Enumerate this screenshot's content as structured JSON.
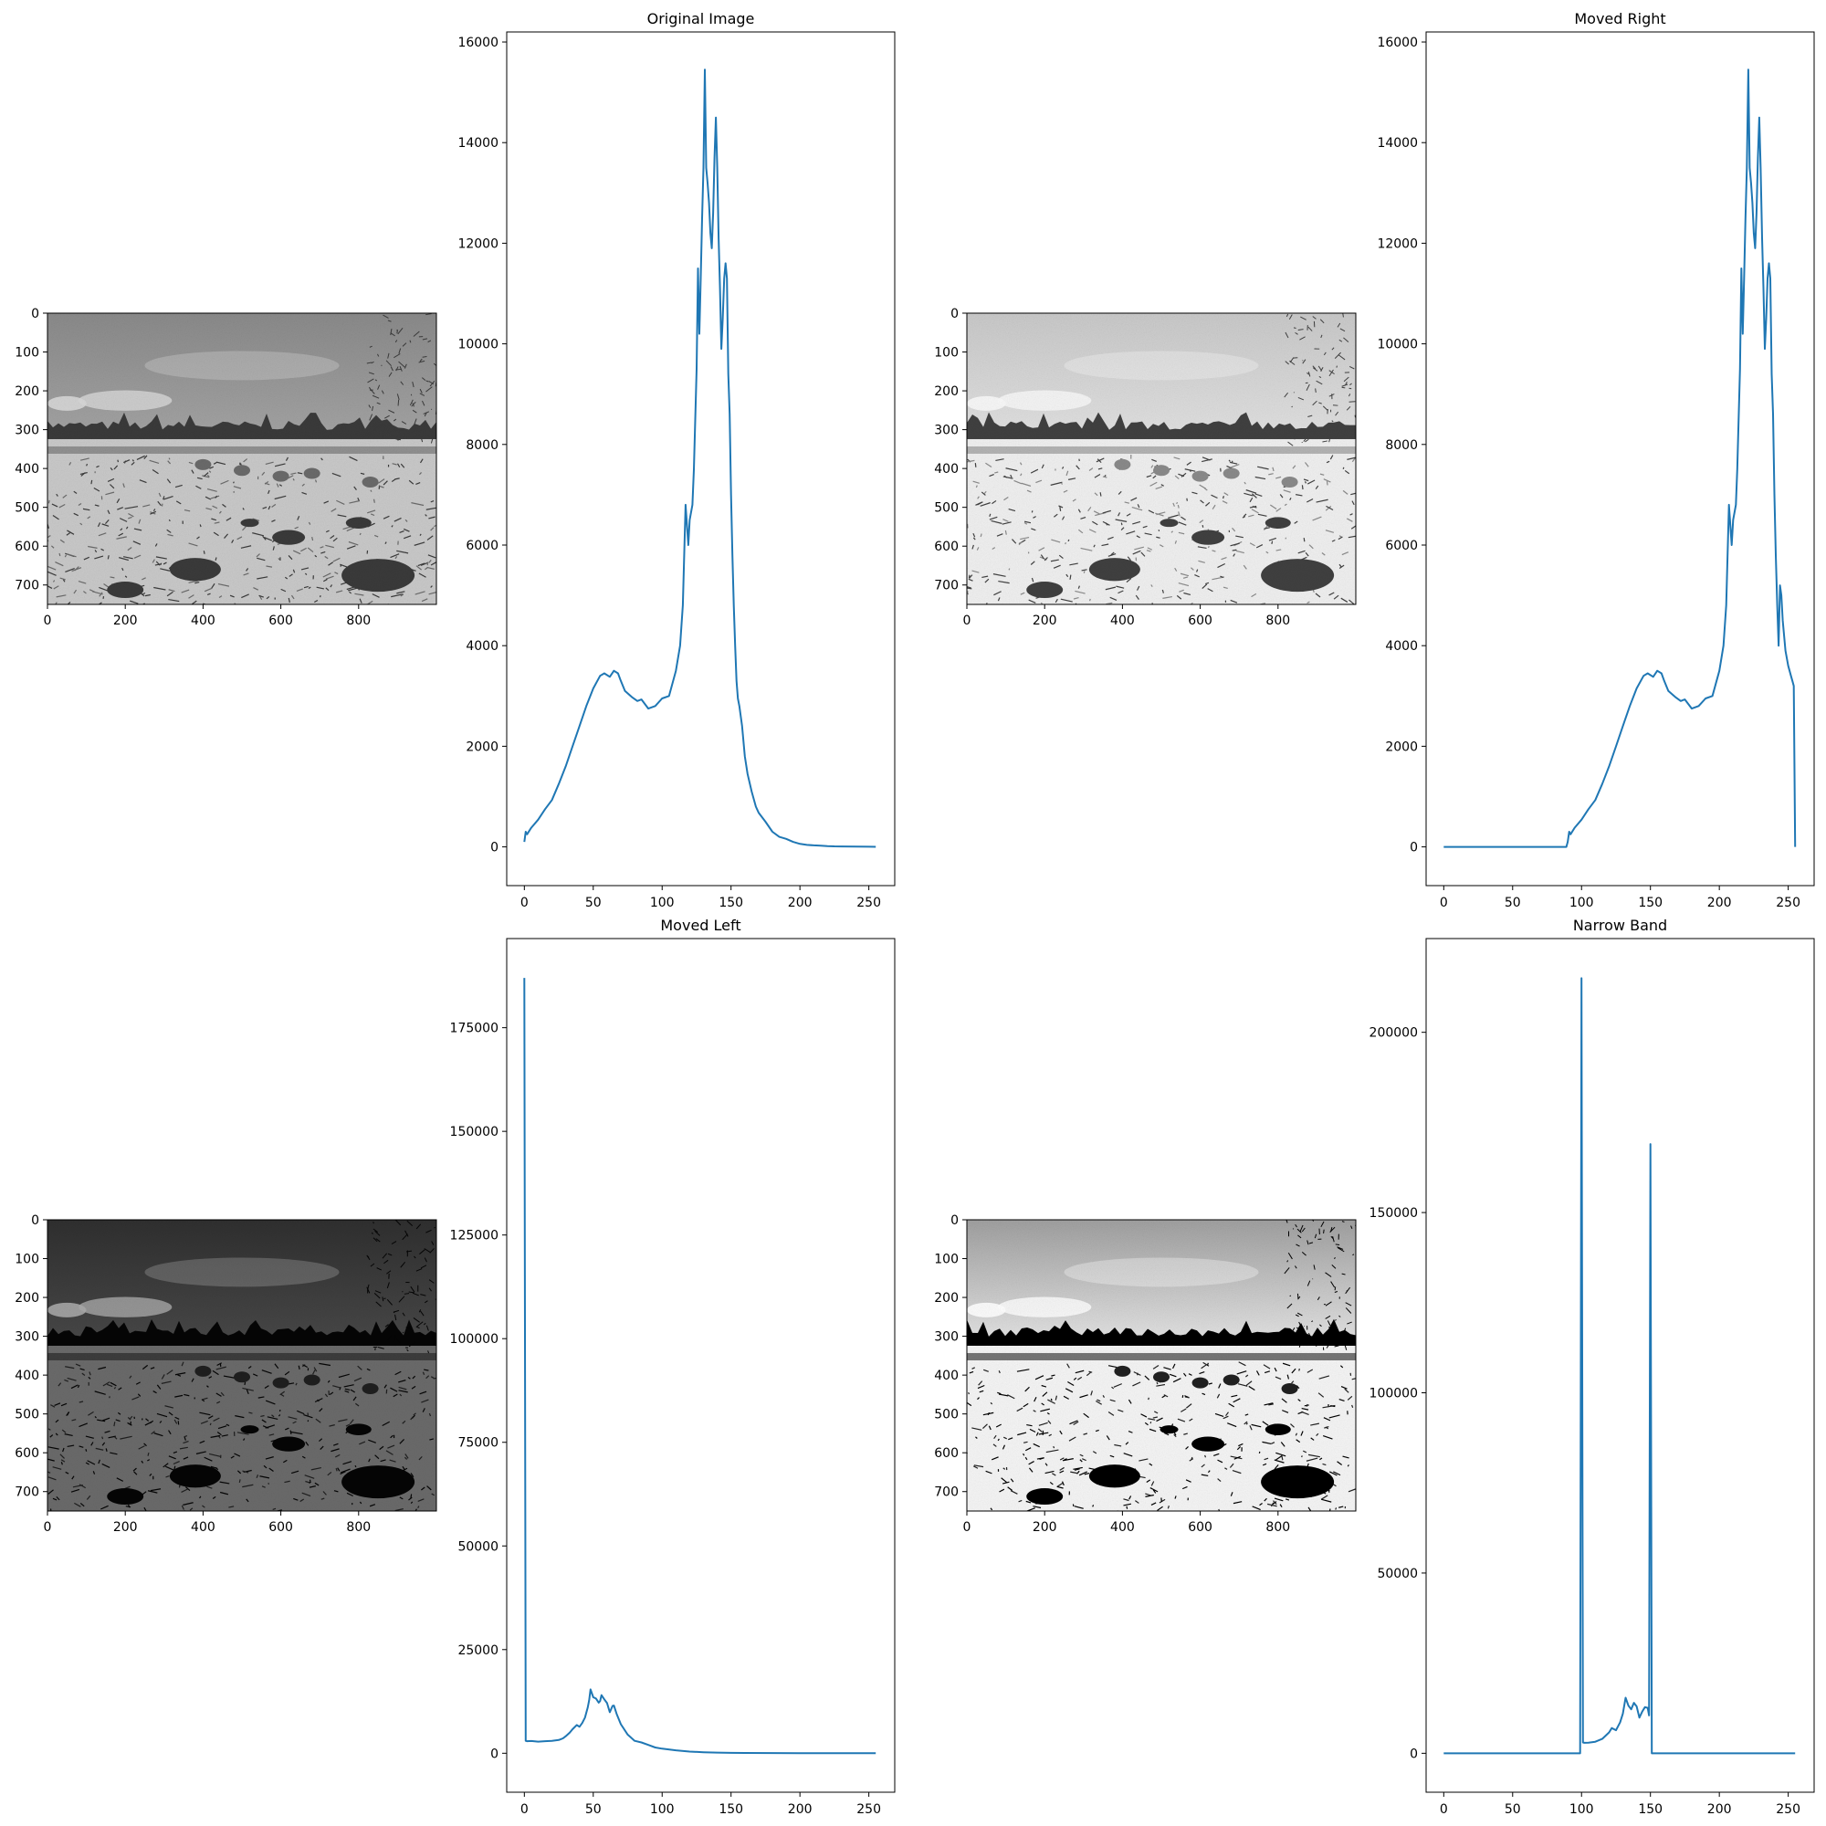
{
  "figure": {
    "panels": [
      {
        "kind": "image",
        "tone": "original",
        "xticks": [
          0,
          200,
          400,
          600,
          800
        ],
        "yticks": [
          0,
          100,
          200,
          300,
          400,
          500,
          600,
          700
        ],
        "xlim": [
          0,
          1000
        ],
        "ylim": [
          0,
          750
        ]
      },
      {
        "kind": "histogram",
        "title": "Original Image",
        "xticks": [
          0,
          50,
          100,
          150,
          200,
          250
        ],
        "yticks": [
          0,
          2000,
          4000,
          6000,
          8000,
          10000,
          12000,
          14000,
          16000
        ],
        "xlim": [
          -12.8,
          268.8
        ],
        "ylim": [
          -770,
          16200
        ]
      },
      {
        "kind": "image",
        "tone": "bright",
        "xticks": [
          0,
          200,
          400,
          600,
          800
        ],
        "yticks": [
          0,
          100,
          200,
          300,
          400,
          500,
          600,
          700
        ],
        "xlim": [
          0,
          1000
        ],
        "ylim": [
          0,
          750
        ]
      },
      {
        "kind": "histogram",
        "title": "Moved Right",
        "xticks": [
          0,
          50,
          100,
          150,
          200,
          250
        ],
        "yticks": [
          0,
          2000,
          4000,
          6000,
          8000,
          10000,
          12000,
          14000,
          16000
        ],
        "xlim": [
          -12.8,
          268.8
        ],
        "ylim": [
          -770,
          16200
        ]
      },
      {
        "kind": "image",
        "tone": "dark",
        "xticks": [
          0,
          200,
          400,
          600,
          800
        ],
        "yticks": [
          0,
          100,
          200,
          300,
          400,
          500,
          600,
          700
        ],
        "xlim": [
          0,
          1000
        ],
        "ylim": [
          0,
          750
        ]
      },
      {
        "kind": "histogram",
        "title": "Moved Left",
        "xticks": [
          0,
          50,
          100,
          150,
          200,
          250
        ],
        "yticks": [
          0,
          25000,
          50000,
          75000,
          100000,
          125000,
          150000,
          175000
        ],
        "xlim": [
          -12.8,
          268.8
        ],
        "ylim": [
          -9400,
          196500
        ]
      },
      {
        "kind": "image",
        "tone": "contrast",
        "xticks": [
          0,
          200,
          400,
          600,
          800
        ],
        "yticks": [
          0,
          100,
          200,
          300,
          400,
          500,
          600,
          700
        ],
        "xlim": [
          0,
          1000
        ],
        "ylim": [
          0,
          750
        ]
      },
      {
        "kind": "histogram",
        "title": "Narrow Band",
        "xticks": [
          0,
          50,
          100,
          150,
          200,
          250
        ],
        "yticks": [
          0,
          50000,
          100000,
          150000,
          200000
        ],
        "xlim": [
          -12.8,
          268.8
        ],
        "ylim": [
          -10800,
          226000
        ]
      }
    ]
  },
  "chart_data": [
    {
      "type": "line",
      "title": "Original Image",
      "x": [
        0,
        1,
        2,
        5,
        10,
        15,
        20,
        25,
        30,
        35,
        40,
        45,
        50,
        55,
        58,
        62,
        65,
        68,
        70,
        73,
        78,
        82,
        85,
        90,
        95,
        100,
        105,
        110,
        113,
        115,
        117,
        119,
        120,
        122,
        123,
        124,
        125,
        126,
        127,
        128,
        129,
        130,
        131,
        132,
        133,
        134,
        135,
        136,
        137,
        138,
        139,
        140,
        141,
        142,
        143,
        144,
        145,
        146,
        147,
        148,
        149,
        150,
        151,
        152,
        153,
        154,
        155,
        156,
        157,
        158,
        160,
        162,
        165,
        168,
        170,
        175,
        180,
        185,
        190,
        195,
        200,
        205,
        210,
        215,
        220,
        225,
        230,
        240,
        250,
        255
      ],
      "y": [
        100,
        300,
        250,
        380,
        540,
        750,
        930,
        1250,
        1600,
        2000,
        2400,
        2800,
        3150,
        3400,
        3450,
        3380,
        3500,
        3450,
        3300,
        3100,
        2980,
        2900,
        2930,
        2750,
        2800,
        2950,
        3000,
        3500,
        4000,
        4800,
        6800,
        6000,
        6500,
        6800,
        7500,
        8500,
        9500,
        11500,
        10200,
        11300,
        12500,
        13500,
        15450,
        13500,
        13200,
        12800,
        12200,
        11900,
        12600,
        13700,
        14500,
        13500,
        12100,
        11100,
        9900,
        10500,
        11300,
        11600,
        11300,
        9400,
        8600,
        7000,
        5800,
        4800,
        4000,
        3300,
        2950,
        2800,
        2600,
        2400,
        1800,
        1450,
        1100,
        800,
        680,
        500,
        300,
        200,
        160,
        100,
        60,
        40,
        30,
        25,
        15,
        10,
        8,
        5,
        3,
        2
      ]
    },
    {
      "type": "line",
      "title": "Moved Right",
      "x": [
        0,
        30,
        60,
        89,
        90,
        91,
        92,
        95,
        100,
        105,
        110,
        115,
        120,
        125,
        130,
        135,
        140,
        145,
        148,
        152,
        155,
        158,
        160,
        163,
        168,
        172,
        175,
        180,
        185,
        190,
        195,
        200,
        203,
        205,
        207,
        209,
        210,
        212,
        213,
        214,
        215,
        216,
        217,
        218,
        219,
        220,
        221,
        222,
        223,
        224,
        225,
        226,
        227,
        228,
        229,
        230,
        231,
        232,
        233,
        234,
        235,
        236,
        237,
        238,
        239,
        240,
        241,
        242,
        243,
        244,
        245,
        246,
        247,
        248,
        250,
        252,
        253,
        254,
        255
      ],
      "y": [
        0,
        0,
        0,
        0,
        100,
        300,
        250,
        380,
        540,
        750,
        930,
        1250,
        1600,
        2000,
        2400,
        2800,
        3150,
        3400,
        3450,
        3380,
        3500,
        3450,
        3300,
        3100,
        2980,
        2900,
        2930,
        2750,
        2800,
        2950,
        3000,
        3500,
        4000,
        4800,
        6800,
        6000,
        6500,
        6800,
        7500,
        8500,
        9500,
        11500,
        10200,
        11300,
        12500,
        13500,
        15450,
        13500,
        13200,
        12800,
        12200,
        11900,
        12600,
        13700,
        14500,
        13500,
        12100,
        11100,
        9900,
        10500,
        11300,
        11600,
        11300,
        9400,
        8600,
        7000,
        5800,
        4800,
        4000,
        5200,
        5000,
        4500,
        4200,
        3900,
        3600,
        3400,
        3300,
        3200,
        0
      ]
    },
    {
      "type": "line",
      "title": "Moved Left",
      "x": [
        0,
        1,
        2,
        5,
        10,
        15,
        20,
        25,
        28,
        30,
        33,
        35,
        38,
        40,
        42,
        44,
        45,
        46,
        47,
        48,
        50,
        52,
        54,
        55,
        56,
        58,
        60,
        62,
        64,
        65,
        67,
        70,
        75,
        80,
        85,
        90,
        95,
        100,
        110,
        120,
        130,
        140,
        150,
        160,
        180,
        200,
        220,
        240,
        255
      ],
      "y": [
        187000,
        3000,
        2900,
        2950,
        2800,
        2900,
        3000,
        3200,
        3600,
        4100,
        5000,
        5800,
        6800,
        6400,
        7300,
        8600,
        9800,
        11000,
        12800,
        15400,
        13500,
        13200,
        12200,
        12600,
        14000,
        13000,
        12100,
        9900,
        11400,
        11500,
        9500,
        7000,
        4500,
        3000,
        2600,
        2000,
        1400,
        1100,
        700,
        400,
        250,
        150,
        100,
        60,
        40,
        25,
        10,
        5,
        2
      ]
    },
    {
      "type": "line",
      "title": "Narrow Band",
      "x": [
        0,
        20,
        40,
        60,
        80,
        99,
        100,
        101,
        102,
        105,
        110,
        115,
        120,
        122,
        125,
        128,
        130,
        132,
        134,
        136,
        138,
        140,
        142,
        144,
        146,
        148,
        149,
        150,
        151,
        152,
        160,
        180,
        200,
        220,
        240,
        255
      ],
      "y": [
        0,
        0,
        0,
        0,
        0,
        0,
        215000,
        3000,
        2900,
        2950,
        3200,
        4000,
        5800,
        7000,
        6400,
        8600,
        11000,
        15400,
        13200,
        12200,
        14000,
        13000,
        9900,
        11500,
        12800,
        12600,
        10500,
        169000,
        0,
        0,
        0,
        0,
        0,
        0,
        0,
        0
      ]
    }
  ]
}
